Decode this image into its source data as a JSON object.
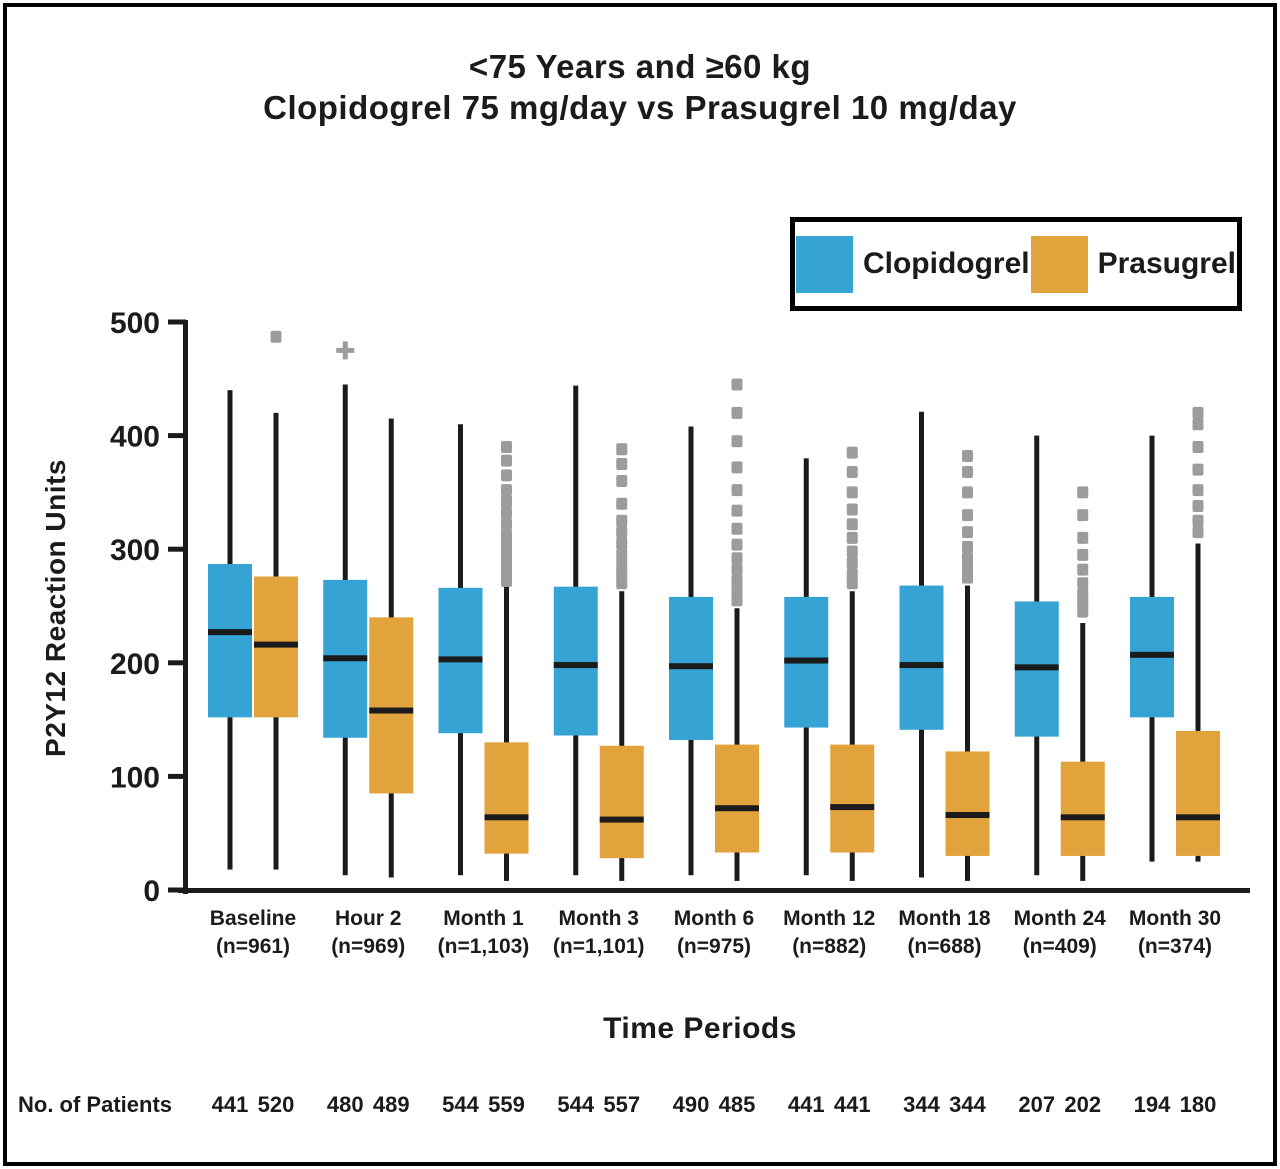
{
  "title": {
    "line1": "<75 Years and ≥60 kg",
    "line2": "Clopidogrel 75 mg/day vs Prasugrel 10 mg/day"
  },
  "legend": {
    "items": [
      {
        "label": "Clopidogrel",
        "color": "#35A4D5"
      },
      {
        "label": "Prasugrel",
        "color": "#E2A33D"
      }
    ]
  },
  "colors": {
    "clopidogrel": "#35A4D5",
    "prasugrel": "#E2A33D",
    "outlier_gray": "#9C9C9C",
    "axis_black": "#1B1B1B"
  },
  "chart_data": {
    "type": "boxplot",
    "title": "<75 Years and ≥60 kg — Clopidogrel 75 mg/day vs Prasugrel 10 mg/day",
    "ylabel": "P2Y12 Reaction Units",
    "xlabel": "Time Periods",
    "ylim": [
      0,
      500
    ],
    "yticks": [
      0,
      100,
      200,
      300,
      400,
      500
    ],
    "grid": false,
    "legend_position": "top-right",
    "categories": [
      {
        "label": "Baseline",
        "sub": "(n=961)"
      },
      {
        "label": "Hour 2",
        "sub": "(n=969)"
      },
      {
        "label": "Month 1",
        "sub": "(n=1,103)"
      },
      {
        "label": "Month 3",
        "sub": "(n=1,101)"
      },
      {
        "label": "Month 6",
        "sub": "(n=975)"
      },
      {
        "label": "Month 12",
        "sub": "(n=882)"
      },
      {
        "label": "Month 18",
        "sub": "(n=688)"
      },
      {
        "label": "Month 24",
        "sub": "(n=409)"
      },
      {
        "label": "Month 30",
        "sub": "(n=374)"
      }
    ],
    "series": [
      {
        "name": "Clopidogrel",
        "color": "#35A4D5",
        "boxes": [
          {
            "low": 18,
            "q1": 152,
            "median": 227,
            "q3": 287,
            "high": 440,
            "outliers": [],
            "outlier_marker": "square"
          },
          {
            "low": 13,
            "q1": 134,
            "median": 204,
            "q3": 273,
            "high": 445,
            "outliers": [
              475
            ],
            "outlier_marker": "plus"
          },
          {
            "low": 13,
            "q1": 138,
            "median": 203,
            "q3": 266,
            "high": 410,
            "outliers": [],
            "outlier_marker": "square"
          },
          {
            "low": 13,
            "q1": 136,
            "median": 198,
            "q3": 267,
            "high": 444,
            "outliers": [],
            "outlier_marker": "square"
          },
          {
            "low": 13,
            "q1": 132,
            "median": 197,
            "q3": 258,
            "high": 408,
            "outliers": [],
            "outlier_marker": "square"
          },
          {
            "low": 13,
            "q1": 143,
            "median": 202,
            "q3": 258,
            "high": 380,
            "outliers": [],
            "outlier_marker": "square"
          },
          {
            "low": 11,
            "q1": 141,
            "median": 198,
            "q3": 268,
            "high": 421,
            "outliers": [],
            "outlier_marker": "square"
          },
          {
            "low": 13,
            "q1": 135,
            "median": 196,
            "q3": 254,
            "high": 400,
            "outliers": [],
            "outlier_marker": "square"
          },
          {
            "low": 25,
            "q1": 152,
            "median": 207,
            "q3": 258,
            "high": 400,
            "outliers": [],
            "outlier_marker": "square"
          }
        ]
      },
      {
        "name": "Prasugrel",
        "color": "#E2A33D",
        "boxes": [
          {
            "low": 18,
            "q1": 152,
            "median": 216,
            "q3": 276,
            "high": 420,
            "outliers": [
              487
            ],
            "outlier_marker": "square"
          },
          {
            "low": 11,
            "q1": 85,
            "median": 158,
            "q3": 240,
            "high": 415,
            "outliers": [],
            "outlier_marker": "square"
          },
          {
            "low": 8,
            "q1": 32,
            "median": 64,
            "q3": 130,
            "high": 267,
            "outliers": [
              272,
              280,
              288,
              296,
              304,
              312,
              322,
              332,
              342,
              352,
              365,
              378,
              390
            ],
            "outlier_marker": "square"
          },
          {
            "low": 8,
            "q1": 28,
            "median": 62,
            "q3": 127,
            "high": 263,
            "outliers": [
              270,
              278,
              286,
              295,
              305,
              315,
              325,
              340,
              360,
              375,
              388
            ],
            "outlier_marker": "square"
          },
          {
            "low": 8,
            "q1": 33,
            "median": 72,
            "q3": 128,
            "high": 248,
            "outliers": [
              255,
              263,
              272,
              282,
              292,
              304,
              318,
              334,
              352,
              372,
              395,
              420,
              445
            ],
            "outlier_marker": "square"
          },
          {
            "low": 8,
            "q1": 33,
            "median": 73,
            "q3": 128,
            "high": 263,
            "outliers": [
              270,
              278,
              288,
              298,
              310,
              322,
              335,
              350,
              368,
              385
            ],
            "outlier_marker": "square"
          },
          {
            "low": 8,
            "q1": 30,
            "median": 66,
            "q3": 122,
            "high": 268,
            "outliers": [
              275,
              283,
              292,
              302,
              315,
              330,
              350,
              368,
              382
            ],
            "outlier_marker": "square"
          },
          {
            "low": 8,
            "q1": 30,
            "median": 64,
            "q3": 113,
            "high": 235,
            "outliers": [
              245,
              252,
              260,
              270,
              282,
              295,
              310,
              330,
              350
            ],
            "outlier_marker": "square"
          },
          {
            "low": 25,
            "q1": 30,
            "median": 64,
            "q3": 140,
            "high": 305,
            "outliers": [
              315,
              325,
              338,
              352,
              370,
              390,
              410,
              420
            ],
            "outlier_marker": "square"
          }
        ]
      }
    ],
    "counts_row": {
      "label": "No. of Patients",
      "pairs": [
        [
          "441",
          "520"
        ],
        [
          "480",
          "489"
        ],
        [
          "544",
          "559"
        ],
        [
          "544",
          "557"
        ],
        [
          "490",
          "485"
        ],
        [
          "441",
          "441"
        ],
        [
          "344",
          "344"
        ],
        [
          "207",
          "202"
        ],
        [
          "194",
          "180"
        ]
      ]
    }
  }
}
